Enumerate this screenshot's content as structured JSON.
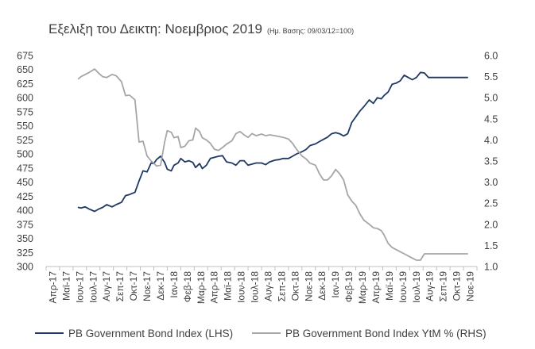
{
  "chart_data": {
    "type": "line",
    "title": "Εξελιξη του Δεικτη: Νοεμβριος 2019",
    "subtitle": "(Ημ. Βασης: 09/03/12=100)",
    "x_categories": [
      "Απρ-17",
      "Μαϊ-17",
      "Ιουν-17",
      "Ιουλ-17",
      "Αυγ-17",
      "Σεπ-17",
      "Οκτ-17",
      "Νοε-17",
      "Δεκ-17",
      "Ιαν-18",
      "Φεβ-18",
      "Μαρ-18",
      "Απρ-18",
      "Μαϊ-18",
      "Ιουν-18",
      "Ιουλ-18",
      "Αυγ-18",
      "Σεπ-18",
      "Οκτ-18",
      "Νοε-18",
      "Δεκ-18",
      "Ιαν-19",
      "Φεβ-19",
      "Μαρ-19",
      "Απρ-19",
      "Μαϊ-19",
      "Ιουν-19",
      "Ιουλ-19",
      "Αυγ-19",
      "Σεπ-19",
      "Οκτ-19",
      "Νοε-19"
    ],
    "x_labels": [
      "Απρ-17",
      "Ιουν-17",
      "Αυγ-17",
      "Οκτ-17",
      "Δεκ-17",
      "Φεβ-18",
      "Απρ-18",
      "Ιουν-18",
      "Αυγ-18",
      "Οκτ-18",
      "Δεκ-18",
      "Φεβ-19",
      "Απρ-19",
      "Ιουν-19",
      "Αυγ-19",
      "Οκτ-19"
    ],
    "x_labels_alt": [
      "Μαϊ-17",
      "Ιουλ-17",
      "Σεπ-17",
      "Νοε-17",
      "Ιαν-18",
      "Μαρ-18",
      "Μαϊ-18",
      "Ιουλ-18",
      "Σεπ-18",
      "Νοε-18",
      "Ιαν-19",
      "Μαρ-19",
      "Μαϊ-19",
      "Ιουλ-19",
      "Σεπ-19",
      "Νοε-19"
    ],
    "y_left": {
      "min": 300,
      "max": 675,
      "step": 25,
      "ticks": [
        "300",
        "325",
        "350",
        "375",
        "400",
        "425",
        "450",
        "475",
        "500",
        "525",
        "550",
        "575",
        "600",
        "625",
        "650",
        "675"
      ]
    },
    "y_right": {
      "min": 1.0,
      "max": 6.0,
      "step": 0.5,
      "ticks": [
        "1.0",
        "1.5",
        "2.0",
        "2.5",
        "3.0",
        "3.5",
        "4.0",
        "4.5",
        "5.0",
        "5.5",
        "6.0"
      ]
    },
    "series": [
      {
        "name": "PB Government Bond Index (LHS)",
        "axis": "left",
        "color": "#1f3864",
        "x": [
          2.4,
          2.6,
          2.9,
          3.2,
          3.6,
          3.9,
          4.2,
          4.5,
          4.9,
          5.2,
          5.6,
          5.9,
          6.2,
          6.6,
          6.9,
          7.2,
          7.5,
          7.8,
          8.0,
          8.2,
          8.5,
          8.8,
          9.0,
          9.3,
          9.5,
          9.8,
          10.0,
          10.3,
          10.6,
          10.9,
          11.1,
          11.4,
          11.6,
          11.9,
          12.2,
          12.5,
          12.8,
          13.1,
          13.4,
          13.8,
          14.1,
          14.4,
          14.7,
          15.0,
          15.3,
          15.6,
          16.0,
          16.3,
          16.6,
          17.0,
          17.3,
          17.6,
          18.0,
          18.3,
          18.6,
          19.0,
          19.3,
          19.6,
          20.0,
          20.3,
          20.6,
          20.9,
          21.2,
          21.5,
          21.8,
          22.1,
          22.4,
          22.7,
          23.0,
          23.3,
          23.6,
          24.0,
          24.3,
          24.6,
          24.9,
          25.1,
          25.4,
          25.7,
          26.0,
          26.3,
          26.6,
          26.9,
          27.2,
          27.5,
          27.8,
          28.1,
          28.4,
          28.7,
          29.0,
          29.3,
          29.6,
          30.0,
          30.3,
          30.6,
          30.9,
          31.3
        ],
        "values": [
          405,
          404,
          406,
          402,
          398,
          402,
          405,
          410,
          406,
          410,
          414,
          426,
          428,
          432,
          452,
          470,
          468,
          484,
          483,
          490,
          496,
          485,
          473,
          470,
          480,
          484,
          492,
          486,
          488,
          485,
          476,
          483,
          474,
          480,
          492,
          494,
          496,
          497,
          486,
          484,
          480,
          488,
          488,
          480,
          482,
          484,
          484,
          481,
          486,
          489,
          490,
          492,
          492,
          496,
          500,
          504,
          508,
          515,
          518,
          522,
          526,
          530,
          536,
          538,
          536,
          532,
          536,
          556,
          566,
          576,
          584,
          596,
          590,
          600,
          598,
          604,
          610,
          624,
          626,
          630,
          640,
          636,
          632,
          636,
          645,
          644,
          636,
          636,
          636,
          636,
          636,
          636,
          636,
          636,
          636,
          636
        ],
        "values_note": "values sampled by eye; final points flat near 636"
      },
      {
        "name": "PB Government Bond Index YtM % (RHS)",
        "axis": "right",
        "color": "#a6a6a6",
        "x": [
          2.4,
          2.6,
          2.9,
          3.2,
          3.6,
          3.9,
          4.2,
          4.5,
          4.9,
          5.2,
          5.6,
          5.9,
          6.2,
          6.6,
          6.9,
          7.2,
          7.5,
          7.8,
          8.0,
          8.2,
          8.5,
          8.8,
          9.0,
          9.3,
          9.5,
          9.8,
          10.0,
          10.3,
          10.6,
          10.9,
          11.1,
          11.4,
          11.6,
          11.9,
          12.2,
          12.5,
          12.8,
          13.1,
          13.4,
          13.8,
          14.1,
          14.4,
          14.7,
          15.0,
          15.3,
          15.6,
          16.0,
          16.3,
          16.6,
          17.0,
          17.3,
          17.6,
          18.0,
          18.3,
          18.6,
          19.0,
          19.3,
          19.6,
          20.0,
          20.3,
          20.6,
          20.9,
          21.2,
          21.5,
          21.8,
          22.1,
          22.4,
          22.7,
          23.0,
          23.3,
          23.6,
          24.0,
          24.3,
          24.6,
          24.9,
          25.1,
          25.4,
          25.7,
          26.0,
          26.3,
          26.6,
          26.9,
          27.2,
          27.5,
          27.8,
          28.1,
          28.4,
          28.7,
          29.0,
          29.3,
          29.6,
          30.0,
          30.3,
          30.6,
          30.9,
          31.3
        ],
        "values": [
          5.45,
          5.5,
          5.55,
          5.6,
          5.68,
          5.58,
          5.5,
          5.48,
          5.55,
          5.52,
          5.38,
          5.05,
          5.06,
          4.95,
          3.95,
          3.97,
          3.62,
          3.5,
          3.45,
          3.38,
          3.4,
          3.95,
          4.22,
          4.18,
          4.05,
          4.08,
          3.82,
          3.85,
          3.98,
          4.0,
          4.28,
          4.2,
          4.05,
          4.0,
          3.92,
          3.78,
          3.75,
          3.82,
          3.9,
          3.98,
          4.15,
          4.2,
          4.12,
          4.06,
          4.15,
          4.1,
          4.14,
          4.1,
          4.12,
          4.1,
          4.08,
          4.06,
          4.02,
          3.92,
          3.78,
          3.62,
          3.55,
          3.45,
          3.4,
          3.2,
          3.05,
          3.05,
          3.15,
          3.3,
          3.2,
          3.05,
          2.7,
          2.55,
          2.45,
          2.25,
          2.1,
          2.0,
          1.92,
          1.9,
          1.85,
          1.75,
          1.55,
          1.45,
          1.4,
          1.35,
          1.3,
          1.25,
          1.2,
          1.15,
          1.15,
          1.3,
          1.3,
          1.3,
          1.3,
          1.3,
          1.3,
          1.3,
          1.3,
          1.3,
          1.3,
          1.3
        ],
        "values_note": "values sampled by eye; final points flat near 1.30"
      }
    ],
    "legend_position": "bottom",
    "grid": false
  }
}
